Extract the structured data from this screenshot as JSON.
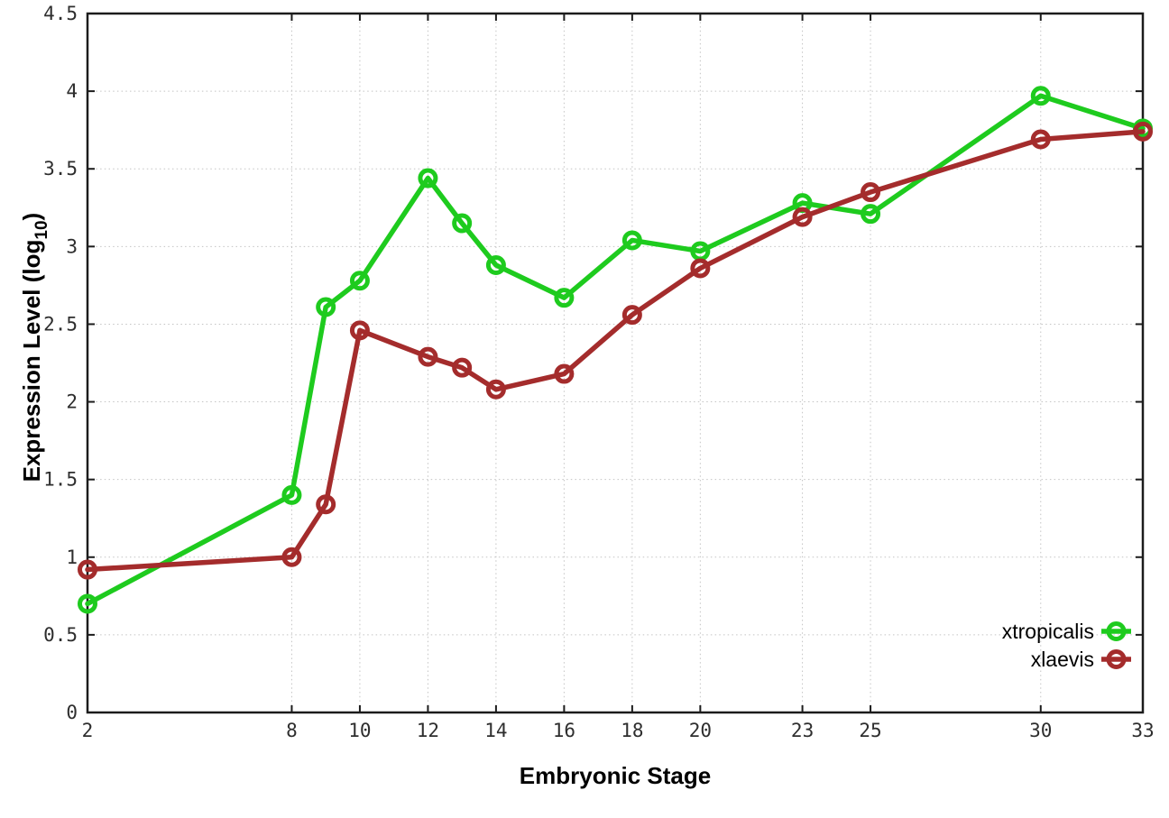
{
  "chart_data": {
    "type": "line",
    "title": "",
    "xlabel": "Embryonic Stage",
    "ylabel": "Expression Level (log10)",
    "ylabel_parts": {
      "prefix": "Expression Level (log",
      "sub": "10",
      "suffix": ")"
    },
    "x": [
      2,
      8,
      9,
      10,
      12,
      13,
      14,
      16,
      18,
      20,
      23,
      25,
      30,
      33
    ],
    "xticks": [
      2,
      8,
      10,
      12,
      14,
      16,
      18,
      20,
      23,
      25,
      30,
      33
    ],
    "xlim": [
      2,
      33
    ],
    "ylim": [
      0,
      4.5
    ],
    "ytick_step": 0.5,
    "grid": "dotted",
    "legend_position": "bottom-right",
    "marker": "open-circle",
    "background_color": "#ffffff",
    "grid_color": "#c4c4c4",
    "border_color": "#1c1c1c",
    "series": [
      {
        "name": "xtropicalis",
        "color": "#1ecb1e",
        "values": [
          0.7,
          1.4,
          2.61,
          2.78,
          3.44,
          3.15,
          2.88,
          2.67,
          3.04,
          2.97,
          3.28,
          3.21,
          3.97,
          3.76
        ]
      },
      {
        "name": "xlaevis",
        "color": "#a42c2c",
        "values": [
          0.92,
          1.0,
          1.34,
          2.46,
          2.29,
          2.22,
          2.08,
          2.18,
          2.56,
          2.86,
          3.19,
          3.35,
          3.69,
          3.74
        ]
      }
    ]
  }
}
